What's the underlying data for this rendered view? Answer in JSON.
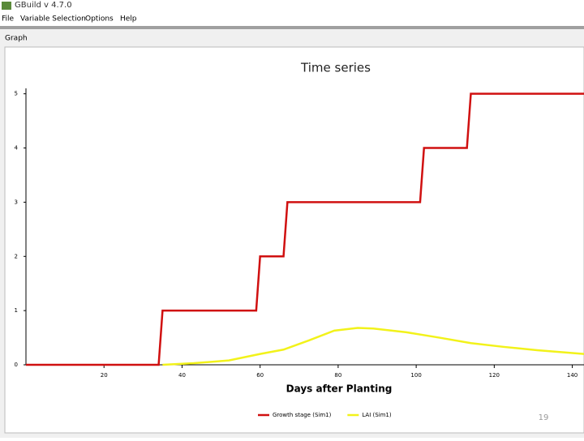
{
  "window": {
    "title": "GBuild v 4.7.0",
    "menu": [
      "File",
      "Variable Selection",
      "Options",
      "Help"
    ],
    "panel": "Graph",
    "page_number": "19"
  },
  "chart_data": {
    "type": "line",
    "title": "Time series",
    "x_label": "Days after Planting",
    "xlim": [
      0,
      143
    ],
    "xticks": [
      20,
      40,
      60,
      80,
      100,
      120,
      140
    ],
    "ylim": [
      0,
      5.1
    ],
    "yticks": [
      0,
      1,
      2,
      3,
      4,
      5
    ],
    "series": [
      {
        "name": "Growth stage (Sim1)",
        "color": "#d01010",
        "x": [
          0,
          34,
          35,
          59,
          60,
          66,
          67,
          101,
          102,
          113,
          114,
          143
        ],
        "values": [
          0,
          0,
          1,
          1,
          2,
          2,
          3,
          3,
          4,
          4,
          5,
          5
        ]
      },
      {
        "name": "LAI (Sim1)",
        "color": "#f2f21a",
        "x": [
          35,
          43,
          52,
          60,
          66,
          72.5,
          79,
          85,
          89,
          97.5,
          106,
          114,
          122.5,
          131,
          143
        ],
        "values": [
          0,
          0.03,
          0.08,
          0.2,
          0.28,
          0.45,
          0.63,
          0.68,
          0.67,
          0.6,
          0.5,
          0.4,
          0.33,
          0.27,
          0.2
        ]
      }
    ]
  }
}
